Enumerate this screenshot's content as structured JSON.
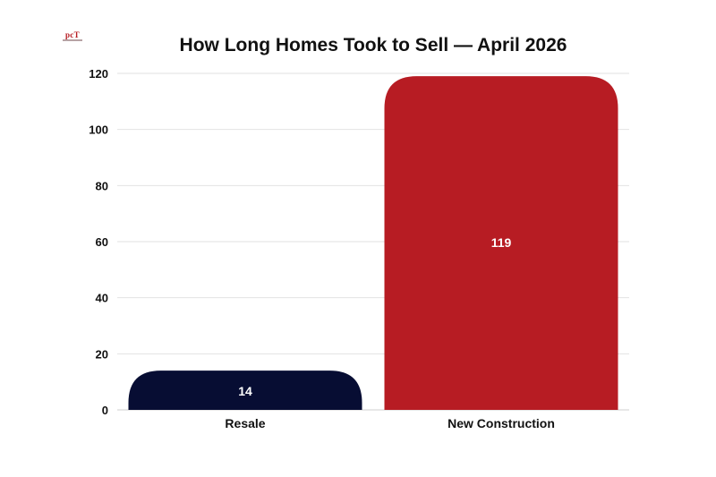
{
  "logo": {
    "text": "pcT",
    "description": "small brand logo"
  },
  "chart_data": {
    "type": "bar",
    "title": "How Long Homes Took to Sell — April 2026",
    "xlabel": "",
    "ylabel": "",
    "categories": [
      "Resale",
      "New Construction"
    ],
    "values": [
      14,
      119
    ],
    "colors": [
      "#070d33",
      "#b71c23"
    ],
    "ylim": [
      0,
      120
    ],
    "yticks": [
      0,
      20,
      40,
      60,
      80,
      100,
      120
    ],
    "grid": true,
    "data_labels": true,
    "legend": "none"
  }
}
